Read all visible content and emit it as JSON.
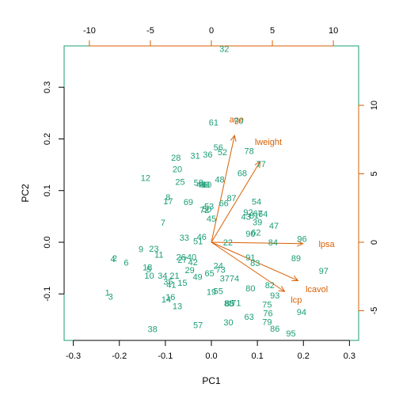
{
  "chart_data": {
    "type": "biplot",
    "xlabel": "PC1",
    "ylabel": "PC2",
    "xlim": [
      -0.32,
      0.32
    ],
    "ylim": [
      -0.19,
      0.38
    ],
    "xticks": [
      -0.3,
      -0.2,
      -0.1,
      0.0,
      0.1,
      0.2,
      0.3
    ],
    "yticks": [
      -0.1,
      0.0,
      0.1,
      0.2,
      0.3
    ],
    "secondary_xlim": [
      -12.07,
      12.07
    ],
    "secondary_ylim": [
      -7.17,
      14.34
    ],
    "secondary_xticks": [
      -10,
      -5,
      0,
      5,
      10
    ],
    "secondary_yticks": [
      -5,
      0,
      5,
      10
    ],
    "colors": {
      "observations": "#1b9e77",
      "loadings": "#d95f02",
      "frame": "#1b9e77"
    },
    "observations": [
      {
        "label": "1",
        "x": -0.226,
        "y": -0.097
      },
      {
        "label": "2",
        "x": -0.21,
        "y": -0.031
      },
      {
        "label": "3",
        "x": -0.219,
        "y": -0.105
      },
      {
        "label": "4",
        "x": -0.214,
        "y": -0.032
      },
      {
        "label": "5",
        "x": -0.136,
        "y": -0.052
      },
      {
        "label": "6",
        "x": -0.185,
        "y": -0.039
      },
      {
        "label": "7",
        "x": -0.105,
        "y": 0.038
      },
      {
        "label": "8",
        "x": -0.094,
        "y": 0.087
      },
      {
        "label": "9",
        "x": -0.153,
        "y": -0.013
      },
      {
        "label": "10",
        "x": -0.135,
        "y": -0.064
      },
      {
        "label": "11",
        "x": -0.114,
        "y": -0.024
      },
      {
        "label": "12",
        "x": -0.143,
        "y": 0.125
      },
      {
        "label": "13",
        "x": -0.074,
        "y": -0.123
      },
      {
        "label": "14",
        "x": -0.098,
        "y": -0.11
      },
      {
        "label": "15",
        "x": -0.063,
        "y": -0.078
      },
      {
        "label": "16",
        "x": -0.089,
        "y": -0.106
      },
      {
        "label": "17",
        "x": -0.094,
        "y": 0.08
      },
      {
        "label": "18",
        "x": -0.139,
        "y": -0.048
      },
      {
        "label": "19",
        "x": 0.0,
        "y": -0.096
      },
      {
        "label": "20",
        "x": -0.074,
        "y": 0.142
      },
      {
        "label": "21",
        "x": -0.08,
        "y": -0.064
      },
      {
        "label": "22",
        "x": 0.036,
        "y": 0.0
      },
      {
        "label": "23",
        "x": -0.125,
        "y": -0.012
      },
      {
        "label": "24",
        "x": 0.015,
        "y": -0.045
      },
      {
        "label": "25",
        "x": -0.068,
        "y": 0.117
      },
      {
        "label": "26",
        "x": -0.066,
        "y": -0.028
      },
      {
        "label": "27",
        "x": -0.063,
        "y": -0.034
      },
      {
        "label": "28",
        "x": -0.077,
        "y": 0.164
      },
      {
        "label": "29",
        "x": -0.047,
        "y": -0.054
      },
      {
        "label": "30",
        "x": 0.037,
        "y": -0.155
      },
      {
        "label": "31",
        "x": -0.035,
        "y": 0.168
      },
      {
        "label": "32",
        "x": 0.028,
        "y": 0.375
      },
      {
        "label": "33",
        "x": -0.059,
        "y": 0.009
      },
      {
        "label": "34",
        "x": -0.106,
        "y": -0.064
      },
      {
        "label": "35",
        "x": -0.094,
        "y": -0.076
      },
      {
        "label": "36",
        "x": -0.008,
        "y": 0.17
      },
      {
        "label": "37",
        "x": 0.029,
        "y": -0.07
      },
      {
        "label": "38",
        "x": -0.128,
        "y": -0.168
      },
      {
        "label": "39",
        "x": 0.1,
        "y": 0.039
      },
      {
        "label": "40",
        "x": -0.043,
        "y": -0.028
      },
      {
        "label": "41",
        "x": -0.087,
        "y": -0.082
      },
      {
        "label": "42",
        "x": -0.04,
        "y": -0.038
      },
      {
        "label": "43",
        "x": 0.075,
        "y": 0.05
      },
      {
        "label": "44",
        "x": -0.022,
        "y": 0.112
      },
      {
        "label": "45",
        "x": 0.0,
        "y": 0.046
      },
      {
        "label": "46",
        "x": -0.021,
        "y": 0.011
      },
      {
        "label": "47",
        "x": 0.136,
        "y": 0.032
      },
      {
        "label": "48",
        "x": 0.018,
        "y": 0.122
      },
      {
        "label": "49",
        "x": -0.03,
        "y": -0.067
      },
      {
        "label": "50",
        "x": -0.01,
        "y": 0.064
      },
      {
        "label": "51",
        "x": -0.029,
        "y": 0.002
      },
      {
        "label": "52",
        "x": 0.024,
        "y": 0.175
      },
      {
        "label": "53",
        "x": -0.005,
        "y": 0.07
      },
      {
        "label": "54",
        "x": 0.098,
        "y": 0.079
      },
      {
        "label": "55",
        "x": 0.015,
        "y": -0.094
      },
      {
        "label": "56",
        "x": 0.015,
        "y": 0.184
      },
      {
        "label": "57",
        "x": -0.029,
        "y": -0.16
      },
      {
        "label": "58",
        "x": -0.028,
        "y": 0.116
      },
      {
        "label": "59",
        "x": -0.014,
        "y": 0.112
      },
      {
        "label": "60",
        "x": -0.01,
        "y": 0.112
      },
      {
        "label": "61",
        "x": 0.005,
        "y": 0.232
      },
      {
        "label": "62",
        "x": 0.097,
        "y": 0.019
      },
      {
        "label": "63",
        "x": 0.082,
        "y": -0.144
      },
      {
        "label": "64",
        "x": 0.112,
        "y": 0.055
      },
      {
        "label": "65",
        "x": -0.004,
        "y": -0.06
      },
      {
        "label": "66",
        "x": 0.027,
        "y": 0.076
      },
      {
        "label": "67",
        "x": 0.101,
        "y": 0.056
      },
      {
        "label": "68",
        "x": 0.067,
        "y": 0.134
      },
      {
        "label": "69",
        "x": -0.05,
        "y": 0.078
      },
      {
        "label": "70",
        "x": 0.059,
        "y": 0.235
      },
      {
        "label": "71",
        "x": 0.054,
        "y": -0.117
      },
      {
        "label": "72",
        "x": -0.015,
        "y": 0.063
      },
      {
        "label": "73",
        "x": 0.02,
        "y": -0.053
      },
      {
        "label": "74",
        "x": 0.05,
        "y": -0.07
      },
      {
        "label": "75",
        "x": 0.121,
        "y": -0.12
      },
      {
        "label": "76",
        "x": 0.123,
        "y": -0.137
      },
      {
        "label": "77",
        "x": 0.108,
        "y": 0.152
      },
      {
        "label": "78",
        "x": 0.082,
        "y": 0.177
      },
      {
        "label": "79",
        "x": 0.121,
        "y": -0.154
      },
      {
        "label": "80",
        "x": 0.085,
        "y": -0.089
      },
      {
        "label": "81",
        "x": 0.093,
        "y": 0.052
      },
      {
        "label": "82",
        "x": 0.127,
        "y": -0.083
      },
      {
        "label": "83",
        "x": 0.095,
        "y": -0.04
      },
      {
        "label": "84",
        "x": 0.134,
        "y": 0.0
      },
      {
        "label": "85",
        "x": 0.04,
        "y": -0.118
      },
      {
        "label": "86",
        "x": 0.138,
        "y": -0.167
      },
      {
        "label": "87",
        "x": 0.044,
        "y": 0.086
      },
      {
        "label": "88",
        "x": 0.038,
        "y": -0.118
      },
      {
        "label": "89",
        "x": 0.184,
        "y": -0.031
      },
      {
        "label": "90",
        "x": 0.085,
        "y": 0.017
      },
      {
        "label": "91",
        "x": 0.085,
        "y": -0.029
      },
      {
        "label": "92",
        "x": 0.08,
        "y": 0.058
      },
      {
        "label": "93",
        "x": 0.138,
        "y": -0.103
      },
      {
        "label": "94",
        "x": 0.196,
        "y": -0.135
      },
      {
        "label": "95",
        "x": 0.173,
        "y": -0.176
      },
      {
        "label": "96",
        "x": 0.197,
        "y": 0.007
      },
      {
        "label": "97",
        "x": 0.244,
        "y": -0.055
      }
    ],
    "loadings": [
      {
        "label": "lcavol",
        "x": 7.1,
        "y": -2.8
      },
      {
        "label": "lweight",
        "x": 4.0,
        "y": 5.9
      },
      {
        "label": "age",
        "x": 1.9,
        "y": 7.8
      },
      {
        "label": "lpsa",
        "x": 7.5,
        "y": -0.1
      },
      {
        "label": "lcp",
        "x": 6.0,
        "y": -3.6
      }
    ]
  }
}
